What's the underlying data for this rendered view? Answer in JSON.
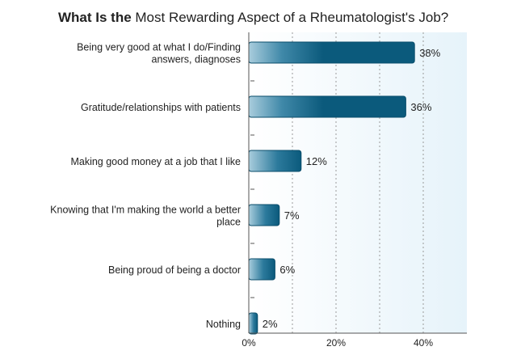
{
  "chart_data": {
    "type": "bar",
    "orientation": "horizontal",
    "title_bold": "What Is the",
    "title_rest": " Most Rewarding Aspect of a Rheumatologist's Job?",
    "categories": [
      [
        "Being very good at what I do/Finding",
        "answers, diagnoses"
      ],
      [
        "Gratitude/relationships with patients"
      ],
      [
        "Making good money at a job that I like"
      ],
      [
        "Knowing that I'm making the world a better",
        "place"
      ],
      [
        "Being proud of being a doctor"
      ],
      [
        "Nothing"
      ]
    ],
    "values": [
      38,
      36,
      12,
      7,
      6,
      2
    ],
    "value_labels": [
      "38%",
      "36%",
      "12%",
      "7%",
      "6%",
      "2%"
    ],
    "xlim": [
      0,
      50
    ],
    "xticks": [
      0,
      20,
      40
    ],
    "xtick_labels": [
      "0%",
      "20%",
      "40%"
    ],
    "grid": true,
    "colors": {
      "bar_dark": "#0b5a7c",
      "bar_light": "#a9cddd",
      "bar_stroke": "#0a4d6b",
      "plot_bg_left": "#ffffff",
      "plot_bg_right": "#e6f3fa",
      "grid": "#9a9a9a",
      "axis": "#555555"
    }
  }
}
